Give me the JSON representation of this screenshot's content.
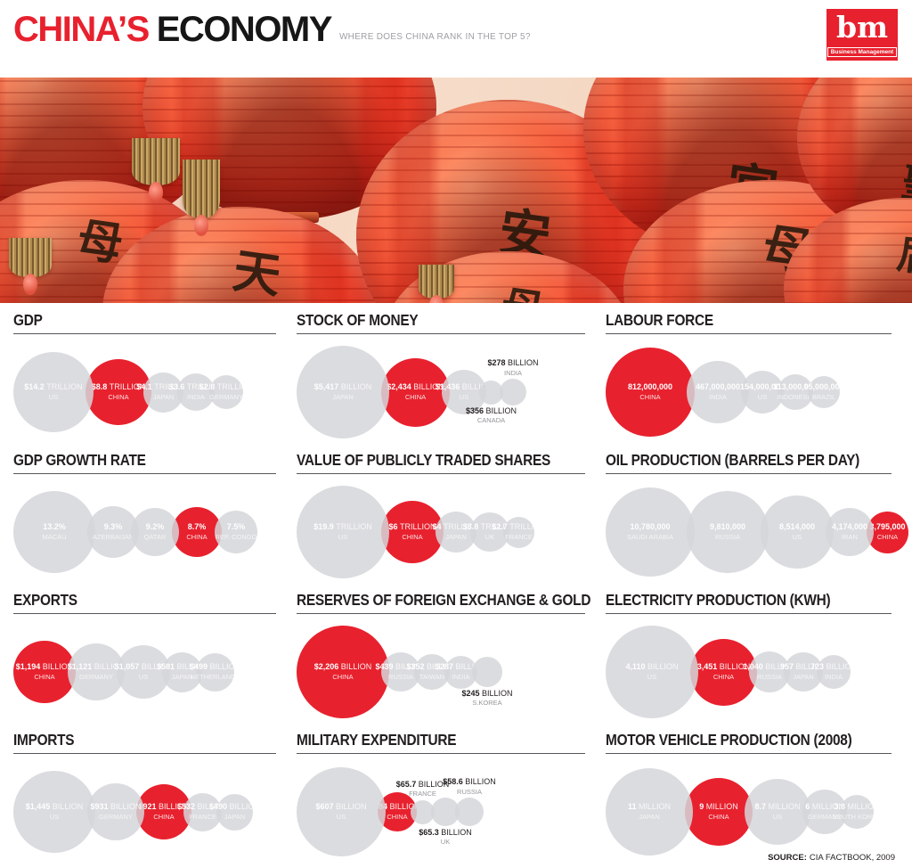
{
  "header": {
    "title_primary": "CHINA’S",
    "title_secondary": "ECONOMY",
    "subtitle": "WHERE DOES CHINA RANK IN THE TOP 5?",
    "logo": {
      "initials": "bm",
      "caption": "Business Management"
    }
  },
  "banner": {
    "glyphs": [
      "母",
      "天",
      "安",
      "母",
      "宮",
      "母",
      "聖",
      "后"
    ]
  },
  "footer": {
    "source_label": "SOURCE:",
    "source_value": "CIA FACTBOOK, 2009"
  },
  "colors": {
    "highlight": "#e8212e",
    "bubble_gray": "#d6d7d9",
    "title_text": "#231f20",
    "subtitle_text": "#9d9fa2"
  },
  "chart_data": [
    {
      "type": "bubble",
      "title": "GDP",
      "bubbles": [
        {
          "value": "$14.2",
          "unit": "TRILLION",
          "country": "US",
          "n": 14.2,
          "d": 90,
          "red": false,
          "pos": "in"
        },
        {
          "value": "$8.8",
          "unit": "TRILLION",
          "country": "CHINA",
          "n": 8.8,
          "d": 74,
          "red": true,
          "pos": "in"
        },
        {
          "value": "$4.1",
          "unit": "TRILLION",
          "country": "JAPAN",
          "n": 4.1,
          "d": 45,
          "red": false,
          "pos": "in"
        },
        {
          "value": "$3.6",
          "unit": "TRILLION",
          "country": "INDIA",
          "n": 3.6,
          "d": 42,
          "red": false,
          "pos": "in"
        },
        {
          "value": "$2.8",
          "unit": "TRILLION",
          "country": "GERMANY",
          "n": 2.8,
          "d": 38,
          "red": false,
          "pos": "in"
        }
      ]
    },
    {
      "type": "bubble",
      "title": "STOCK OF MONEY",
      "bubbles": [
        {
          "value": "$5,417",
          "unit": "BILLION",
          "country": "JAPAN",
          "n": 5417,
          "d": 104,
          "red": false,
          "pos": "in"
        },
        {
          "value": "$2,434",
          "unit": "BILLION",
          "country": "CHINA",
          "n": 2434,
          "d": 77,
          "red": true,
          "pos": "in"
        },
        {
          "value": "$1,436",
          "unit": "BILLION",
          "country": "US",
          "n": 1436,
          "d": 50,
          "red": false,
          "pos": "in"
        },
        {
          "value": "$356",
          "unit": "BILLION",
          "country": "CANADA",
          "n": 356,
          "d": 27,
          "red": false,
          "pos": "below"
        },
        {
          "value": "$278",
          "unit": "BILLION",
          "country": "INDIA",
          "n": 278,
          "d": 30,
          "red": false,
          "pos": "above"
        }
      ]
    },
    {
      "type": "bubble",
      "title": "LABOUR FORCE",
      "bubbles": [
        {
          "value": "812,000,000",
          "unit": "",
          "country": "CHINA",
          "n": 812000000,
          "d": 100,
          "red": true,
          "pos": "in"
        },
        {
          "value": "467,000,000",
          "unit": "",
          "country": "INDIA",
          "n": 467000000,
          "d": 70,
          "red": false,
          "pos": "in"
        },
        {
          "value": "154,000,000",
          "unit": "",
          "country": "US",
          "n": 154000000,
          "d": 48,
          "red": false,
          "pos": "in"
        },
        {
          "value": "113,000,000",
          "unit": "",
          "country": "INDONESIA",
          "n": 113000000,
          "d": 40,
          "red": false,
          "pos": "in"
        },
        {
          "value": "95,000,000",
          "unit": "",
          "country": "BRAZIL",
          "n": 95000000,
          "d": 36,
          "red": false,
          "pos": "in"
        }
      ]
    },
    {
      "type": "bubble",
      "title": "GDP GROWTH RATE",
      "bubbles": [
        {
          "value": "13.2%",
          "unit": "",
          "country": "MACAU",
          "n": 13.2,
          "d": 92,
          "red": false,
          "pos": "in"
        },
        {
          "value": "9.3%",
          "unit": "",
          "country": "AZERBAIJAN",
          "n": 9.3,
          "d": 58,
          "red": false,
          "pos": "in"
        },
        {
          "value": "9.2%",
          "unit": "",
          "country": "QATAR",
          "n": 9.2,
          "d": 54,
          "red": false,
          "pos": "in"
        },
        {
          "value": "8.7%",
          "unit": "",
          "country": "CHINA",
          "n": 8.7,
          "d": 56,
          "red": true,
          "pos": "in"
        },
        {
          "value": "7.5%",
          "unit": "",
          "country": "REP. CONGO",
          "n": 7.5,
          "d": 48,
          "red": false,
          "pos": "in"
        }
      ]
    },
    {
      "type": "bubble",
      "title": "VALUE OF PUBLICLY TRADED SHARES",
      "bubbles": [
        {
          "value": "$19.9",
          "unit": "TRILLION",
          "country": "US",
          "n": 19.9,
          "d": 104,
          "red": false,
          "pos": "in"
        },
        {
          "value": "$6",
          "unit": "TRILLION",
          "country": "CHINA",
          "n": 6,
          "d": 70,
          "red": true,
          "pos": "in"
        },
        {
          "value": "$4",
          "unit": "TRILLION",
          "country": "JAPAN",
          "n": 4,
          "d": 46,
          "red": false,
          "pos": "in"
        },
        {
          "value": "$3.8",
          "unit": "TRILLION",
          "country": "UK",
          "n": 3.8,
          "d": 44,
          "red": false,
          "pos": "in"
        },
        {
          "value": "$2.7",
          "unit": "TRILLION",
          "country": "FRANCE",
          "n": 2.7,
          "d": 35,
          "red": false,
          "pos": "in"
        }
      ]
    },
    {
      "type": "bubble",
      "title": "OIL PRODUCTION (BARRELS PER DAY)",
      "bubbles": [
        {
          "value": "10,780,000",
          "unit": "",
          "country": "SAUDI ARABIA",
          "n": 10780000,
          "d": 100,
          "red": false,
          "pos": "in"
        },
        {
          "value": "9,810,000",
          "unit": "",
          "country": "RUSSIA",
          "n": 9810000,
          "d": 92,
          "red": false,
          "pos": "in"
        },
        {
          "value": "8,514,000",
          "unit": "",
          "country": "US",
          "n": 8514000,
          "d": 82,
          "red": false,
          "pos": "in"
        },
        {
          "value": "4,174,000",
          "unit": "",
          "country": "IRAN",
          "n": 4174000,
          "d": 54,
          "red": false,
          "pos": "in"
        },
        {
          "value": "3,795,000",
          "unit": "",
          "country": "CHINA",
          "n": 3795000,
          "d": 47,
          "red": true,
          "pos": "in"
        }
      ]
    },
    {
      "type": "bubble",
      "title": "EXPORTS",
      "bubbles": [
        {
          "value": "$1,194",
          "unit": "BILLION",
          "country": "CHINA",
          "n": 1194,
          "d": 70,
          "red": true,
          "pos": "in"
        },
        {
          "value": "$1,121",
          "unit": "BILLION",
          "country": "GERMANY",
          "n": 1121,
          "d": 64,
          "red": false,
          "pos": "in"
        },
        {
          "value": "$1,057",
          "unit": "BILLION",
          "country": "US",
          "n": 1057,
          "d": 60,
          "red": false,
          "pos": "in"
        },
        {
          "value": "$581",
          "unit": "BILLION",
          "country": "JAPAN",
          "n": 581,
          "d": 45,
          "red": false,
          "pos": "in"
        },
        {
          "value": "$499",
          "unit": "BILLION",
          "country": "NETHERLANDS",
          "n": 499,
          "d": 43,
          "red": false,
          "pos": "in"
        }
      ]
    },
    {
      "type": "bubble",
      "title": "RESERVES OF FOREIGN EXCHANGE & GOLD",
      "bubbles": [
        {
          "value": "$2,206",
          "unit": "BILLION",
          "country": "CHINA",
          "n": 2206,
          "d": 104,
          "red": true,
          "pos": "in"
        },
        {
          "value": "$439",
          "unit": "BILLION",
          "country": "RUSSIA",
          "n": 439,
          "d": 44,
          "red": false,
          "pos": "in"
        },
        {
          "value": "$352",
          "unit": "BILLION",
          "country": "TAIWAN",
          "n": 352,
          "d": 40,
          "red": false,
          "pos": "in"
        },
        {
          "value": "$287",
          "unit": "BILLION",
          "country": "INDIA",
          "n": 287,
          "d": 37,
          "red": false,
          "pos": "in"
        },
        {
          "value": "$245",
          "unit": "BILLION",
          "country": "S.KOREA",
          "n": 245,
          "d": 34,
          "red": false,
          "pos": "below"
        }
      ]
    },
    {
      "type": "bubble",
      "title": "ELECTRICITY PRODUCTION (KWH)",
      "bubbles": [
        {
          "value": "4,110",
          "unit": "BILLION",
          "country": "US",
          "n": 4110,
          "d": 104,
          "red": false,
          "pos": "in"
        },
        {
          "value": "3,451",
          "unit": "BILLION",
          "country": "CHINA",
          "n": 3451,
          "d": 75,
          "red": true,
          "pos": "in"
        },
        {
          "value": "1,040",
          "unit": "BILLION",
          "country": "RUSSIA",
          "n": 1040,
          "d": 46,
          "red": false,
          "pos": "in"
        },
        {
          "value": "957",
          "unit": "BILLION",
          "country": "JAPAN",
          "n": 957,
          "d": 44,
          "red": false,
          "pos": "in"
        },
        {
          "value": "723",
          "unit": "BILLION",
          "country": "INDIA",
          "n": 723,
          "d": 38,
          "red": false,
          "pos": "in"
        }
      ]
    },
    {
      "type": "bubble",
      "title": "IMPORTS",
      "bubbles": [
        {
          "value": "$1,445",
          "unit": "BILLION",
          "country": "US",
          "n": 1445,
          "d": 92,
          "red": false,
          "pos": "in"
        },
        {
          "value": "$931",
          "unit": "BILLION",
          "country": "GERMANY",
          "n": 931,
          "d": 64,
          "red": false,
          "pos": "in"
        },
        {
          "value": "$921",
          "unit": "BILLION",
          "country": "CHINA",
          "n": 921,
          "d": 62,
          "red": true,
          "pos": "in"
        },
        {
          "value": "$532",
          "unit": "BILLION",
          "country": "FRANCE",
          "n": 532,
          "d": 43,
          "red": false,
          "pos": "in"
        },
        {
          "value": "$490",
          "unit": "BILLION",
          "country": "JAPAN",
          "n": 490,
          "d": 41,
          "red": false,
          "pos": "in"
        }
      ]
    },
    {
      "type": "bubble",
      "title": "MILITARY EXPENDITURE",
      "bubbles": [
        {
          "value": "$607",
          "unit": "BILLION",
          "country": "US",
          "n": 607,
          "d": 100,
          "red": false,
          "pos": "in"
        },
        {
          "value": "$84",
          "unit": "BILLION",
          "country": "CHINA",
          "n": 84,
          "d": 44,
          "red": true,
          "pos": "in"
        },
        {
          "value": "$65.7",
          "unit": "BILLION",
          "country": "FRANCE",
          "n": 65.7,
          "d": 27,
          "red": false,
          "pos": "above"
        },
        {
          "value": "$65.3",
          "unit": "BILLION",
          "country": "UK",
          "n": 65.3,
          "d": 32,
          "red": false,
          "pos": "below"
        },
        {
          "value": "$58.6",
          "unit": "BILLION",
          "country": "RUSSIA",
          "n": 58.6,
          "d": 32,
          "red": false,
          "pos": "above"
        }
      ]
    },
    {
      "type": "bubble",
      "title": "MOTOR VEHICLE PRODUCTION (2008)",
      "bubbles": [
        {
          "value": "11",
          "unit": "MILLION",
          "country": "JAPAN",
          "n": 11,
          "d": 98,
          "red": false,
          "pos": "in"
        },
        {
          "value": "9",
          "unit": "MILLION",
          "country": "CHINA",
          "n": 9,
          "d": 76,
          "red": true,
          "pos": "in"
        },
        {
          "value": "8.7",
          "unit": "MILLION",
          "country": "US",
          "n": 8.7,
          "d": 74,
          "red": false,
          "pos": "in"
        },
        {
          "value": "6",
          "unit": "MILLION",
          "country": "GERMANY",
          "n": 6,
          "d": 50,
          "red": false,
          "pos": "in"
        },
        {
          "value": "3.8",
          "unit": "MILLION",
          "country": "SOUTH KOREA",
          "n": 3.8,
          "d": 38,
          "red": false,
          "pos": "in"
        }
      ]
    }
  ]
}
